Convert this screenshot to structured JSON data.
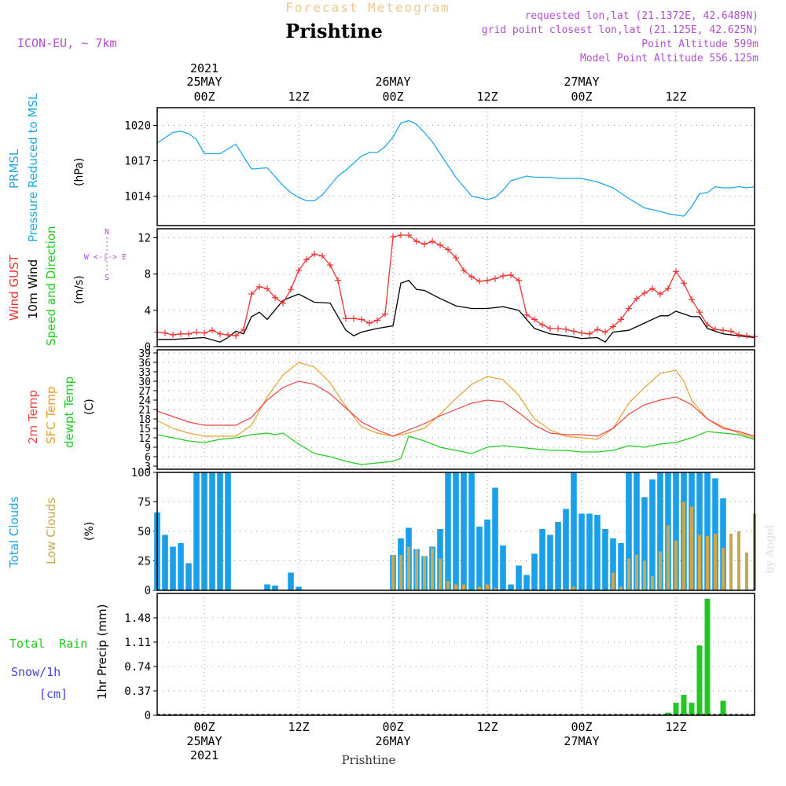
{
  "header": {
    "product": "Forecast Meteogram",
    "location": "Prishtine",
    "model": "ICON-EU, ~ 7km",
    "requested": "requested lon,lat (21.1372E, 42.6489N)",
    "gridpoint": "grid point closest lon,lat (21.125E, 42.625N)",
    "point_altitude": "Point Altitude 599m",
    "model_altitude": "Model Point Altitude 556.125m",
    "footer_location": "Prishtine",
    "credit": "by Angel"
  },
  "time_axis": {
    "top_year": "2021",
    "top_labels": [
      {
        "hour": 6,
        "line1": "25MAY",
        "line2": "00Z"
      },
      {
        "hour": 18,
        "line1": "",
        "line2": "12Z"
      },
      {
        "hour": 30,
        "line1": "26MAY",
        "line2": "00Z"
      },
      {
        "hour": 42,
        "line1": "",
        "line2": "12Z"
      },
      {
        "hour": 54,
        "line1": "27MAY",
        "line2": "00Z"
      },
      {
        "hour": 66,
        "line1": "",
        "line2": "12Z"
      }
    ],
    "bottom_labels": [
      {
        "hour": 6,
        "line1": "00Z",
        "line2": "25MAY",
        "line3": "2021"
      },
      {
        "hour": 18,
        "line1": "12Z",
        "line2": "",
        "line3": ""
      },
      {
        "hour": 30,
        "line1": "00Z",
        "line2": "26MAY",
        "line3": ""
      },
      {
        "hour": 42,
        "line1": "12Z",
        "line2": "",
        "line3": ""
      },
      {
        "hour": 54,
        "line1": "00Z",
        "line2": "27MAY",
        "line3": ""
      },
      {
        "hour": 66,
        "line1": "12Z",
        "line2": "",
        "line3": ""
      }
    ],
    "range_hours": [
      0,
      76
    ]
  },
  "colors": {
    "pressure": "#20a8e8",
    "gust": "#ee3333",
    "wind": "#000000",
    "temp2m": "#ee4444",
    "sfc": "#e8a030",
    "dewpt": "#22cc22",
    "total_cloud": "#1aa0e8",
    "low_cloud": "#c8a850",
    "rain": "#22c822",
    "snow": "#4444dd",
    "header_orange": "#f0c890",
    "header_violet": "#b050d0",
    "grid": "#999999"
  },
  "panels": {
    "pressure": {
      "label1": "PRMSL",
      "label2": "Pressure Reduced to MSL",
      "unit": "(hPa)",
      "ticks": [
        "1014",
        "1017",
        "1020"
      ]
    },
    "wind": {
      "label_gust": "Wind GUST",
      "label_wind": "10m Wind",
      "label_dir": "Speed and Direction",
      "unit": "(m/s)",
      "ticks": [
        "0",
        "4",
        "8",
        "12"
      ],
      "compass_n": "N",
      "compass_s": "S",
      "compass_we": "W <-|-> E"
    },
    "temp": {
      "label_2m": "2m Temp",
      "label_sfc": "SFC Temp",
      "label_dew": "dewpt Temp",
      "unit": "(C)",
      "ticks": [
        "3",
        "6",
        "9",
        "12",
        "15",
        "18",
        "21",
        "24",
        "27",
        "30",
        "33",
        "36",
        "39"
      ]
    },
    "cloud": {
      "label_total": "Total Clouds",
      "label_low": "Low Clouds",
      "unit": "(%)",
      "ticks": [
        "0",
        "25",
        "50",
        "75",
        "100"
      ]
    },
    "precip": {
      "label_rain": "Total  Rain",
      "label_snow": "Snow/1h",
      "label_cm": "[cm]",
      "label_axis": "1hr Precip (mm)",
      "ticks": [
        "0",
        "0.37",
        "0.74",
        "1.11",
        "1.48"
      ]
    }
  },
  "chart_data": [
    {
      "type": "line",
      "title": "PRMSL Pressure Reduced to MSL",
      "ylabel": "hPa",
      "x_unit": "hours from 24 May 18Z",
      "ylim": [
        1011.5,
        1021.5
      ],
      "series": [
        {
          "name": "PRMSL",
          "x": [
            0,
            2,
            3,
            4,
            5,
            6,
            8,
            10,
            12,
            14,
            16,
            17,
            18,
            19,
            20,
            21,
            22,
            23,
            24,
            26,
            27,
            28,
            29,
            30,
            31,
            32,
            33,
            34,
            35,
            36,
            37,
            38,
            40,
            42,
            43,
            44,
            45,
            46,
            47,
            48,
            49,
            50,
            51,
            52,
            53,
            54,
            56,
            58,
            60,
            62,
            64,
            65,
            66,
            67,
            68,
            69,
            70,
            71,
            72,
            73,
            74,
            75,
            76
          ],
          "y": [
            1018.5,
            1019.4,
            1019.5,
            1019.3,
            1018.8,
            1017.6,
            1017.6,
            1018.4,
            1016.3,
            1016.4,
            1014.9,
            1014.3,
            1013.9,
            1013.6,
            1013.6,
            1014.1,
            1014.9,
            1015.7,
            1016.2,
            1017.4,
            1017.7,
            1017.7,
            1018.2,
            1019.0,
            1020.2,
            1020.4,
            1020.1,
            1019.4,
            1018.6,
            1017.6,
            1016.6,
            1015.6,
            1014.0,
            1013.7,
            1013.9,
            1014.5,
            1015.3,
            1015.5,
            1015.7,
            1015.6,
            1015.6,
            1015.6,
            1015.5,
            1015.5,
            1015.5,
            1015.5,
            1015.2,
            1014.7,
            1013.8,
            1013.0,
            1012.7,
            1012.5,
            1012.4,
            1012.3,
            1013.1,
            1014.2,
            1014.3,
            1014.8,
            1014.7,
            1014.7,
            1014.8,
            1014.7,
            1014.8
          ]
        }
      ]
    },
    {
      "type": "line",
      "title": "Wind GUST / 10m Wind Speed",
      "ylabel": "m/s",
      "ylim": [
        0,
        13
      ],
      "series": [
        {
          "name": "Wind GUST",
          "x": [
            0,
            1,
            2,
            3,
            4,
            5,
            6,
            7,
            8,
            9,
            10,
            11,
            12,
            13,
            14,
            15,
            16,
            17,
            18,
            19,
            20,
            21,
            22,
            23,
            24,
            25,
            26,
            27,
            28,
            29,
            30,
            31,
            32,
            33,
            34,
            35,
            36,
            37,
            38,
            39,
            40,
            41,
            42,
            43,
            44,
            45,
            46,
            47,
            48,
            49,
            50,
            51,
            52,
            53,
            54,
            55,
            56,
            57,
            58,
            59,
            60,
            61,
            62,
            63,
            64,
            65,
            66,
            67,
            68,
            69,
            70,
            71,
            72,
            73,
            74,
            75,
            76
          ],
          "y": [
            1.6,
            1.5,
            1.3,
            1.4,
            1.4,
            1.6,
            1.5,
            1.8,
            1.4,
            1.3,
            1.2,
            1.9,
            5.8,
            6.6,
            6.4,
            5.4,
            4.8,
            6.3,
            8.4,
            9.6,
            10.2,
            10.0,
            9.0,
            7.3,
            3.1,
            3.1,
            3.0,
            2.6,
            2.9,
            3.6,
            12.1,
            12.3,
            12.3,
            11.6,
            11.3,
            11.6,
            11.2,
            10.7,
            9.8,
            8.4,
            7.7,
            7.2,
            7.3,
            7.5,
            7.8,
            7.9,
            7.3,
            3.5,
            3.0,
            2.4,
            2.0,
            2.0,
            1.9,
            1.7,
            1.5,
            1.4,
            1.9,
            1.6,
            2.2,
            3.0,
            4.2,
            5.3,
            5.9,
            6.4,
            5.8,
            6.4,
            8.3,
            7.0,
            5.2,
            3.8,
            2.4,
            1.9,
            1.8,
            1.7,
            1.3,
            1.2,
            1.1
          ]
        },
        {
          "name": "10m Wind",
          "x": [
            0,
            2,
            4,
            6,
            8,
            9,
            10,
            11,
            12,
            13,
            14,
            16,
            18,
            20,
            22,
            24,
            25,
            26,
            28,
            30,
            31,
            32,
            33,
            34,
            36,
            38,
            40,
            42,
            44,
            46,
            48,
            50,
            52,
            54,
            56,
            57,
            58,
            60,
            62,
            64,
            65,
            66,
            68,
            69,
            70,
            72,
            74,
            76
          ],
          "y": [
            0.8,
            0.8,
            0.9,
            1.0,
            0.5,
            1.0,
            1.7,
            1.4,
            3.3,
            3.8,
            3.0,
            5.1,
            5.8,
            4.9,
            4.8,
            1.8,
            1.2,
            1.6,
            2.0,
            2.3,
            7.0,
            7.3,
            6.3,
            6.2,
            5.3,
            4.5,
            4.2,
            4.2,
            4.4,
            4.0,
            2.0,
            1.4,
            1.2,
            0.9,
            1.0,
            0.5,
            1.6,
            1.8,
            2.6,
            3.4,
            3.4,
            3.9,
            3.3,
            3.3,
            2.0,
            1.4,
            1.2,
            1.0
          ]
        }
      ]
    },
    {
      "type": "line",
      "title": "2m Temp / SFC Temp / dewpt Temp",
      "ylabel": "C",
      "ylim": [
        2,
        40
      ],
      "series": [
        {
          "name": "2m Temp",
          "x": [
            0,
            4,
            6,
            8,
            10,
            12,
            14,
            16,
            18,
            20,
            22,
            24,
            26,
            28,
            30,
            32,
            34,
            36,
            38,
            40,
            42,
            44,
            46,
            48,
            50,
            52,
            54,
            56,
            58,
            60,
            62,
            64,
            66,
            68,
            70,
            72,
            74,
            76
          ],
          "y": [
            20.5,
            17.0,
            16.0,
            16.0,
            16.0,
            18.5,
            24.0,
            28.0,
            30.0,
            29.0,
            26.0,
            21.5,
            17.0,
            14.5,
            12.5,
            14.5,
            16.5,
            19.0,
            21.0,
            23.0,
            24.0,
            23.5,
            20.0,
            16.0,
            13.5,
            13.0,
            13.0,
            12.5,
            15.0,
            19.5,
            22.5,
            24.0,
            25.0,
            22.5,
            18.0,
            15.0,
            14.0,
            12.5
          ]
        },
        {
          "name": "SFC Temp",
          "x": [
            0,
            2,
            4,
            6,
            8,
            10,
            12,
            14,
            16,
            18,
            20,
            22,
            24,
            26,
            28,
            30,
            32,
            34,
            36,
            38,
            40,
            42,
            44,
            46,
            48,
            50,
            52,
            54,
            56,
            58,
            60,
            62,
            64,
            66,
            67,
            68,
            70,
            72,
            74,
            76
          ],
          "y": [
            17.5,
            15.0,
            13.5,
            12.5,
            12.5,
            12.5,
            16.0,
            25.0,
            32.0,
            36.0,
            34.5,
            29.5,
            22.0,
            15.5,
            13.5,
            12.5,
            13.5,
            15.0,
            19.5,
            24.5,
            29.0,
            31.5,
            30.5,
            25.5,
            18.0,
            14.5,
            12.5,
            12.0,
            11.5,
            15.0,
            23.0,
            28.0,
            32.5,
            33.5,
            30.0,
            24.0,
            18.0,
            15.5,
            13.5,
            12.0
          ]
        },
        {
          "name": "dewpt Temp",
          "x": [
            0,
            2,
            4,
            6,
            8,
            10,
            12,
            14,
            15,
            16,
            18,
            20,
            22,
            24,
            26,
            28,
            30,
            31,
            32,
            34,
            36,
            38,
            40,
            42,
            44,
            46,
            48,
            50,
            52,
            54,
            56,
            58,
            60,
            62,
            64,
            66,
            68,
            70,
            72,
            74,
            76
          ],
          "y": [
            13.0,
            12.0,
            11.0,
            10.5,
            11.5,
            12.0,
            13.0,
            13.5,
            13.0,
            13.5,
            10.0,
            7.0,
            6.0,
            4.5,
            3.5,
            4.0,
            4.5,
            5.5,
            12.5,
            11.0,
            9.0,
            8.0,
            7.0,
            9.0,
            9.5,
            9.0,
            8.5,
            8.0,
            8.0,
            7.5,
            7.5,
            8.0,
            9.5,
            9.0,
            10.0,
            10.5,
            12.0,
            14.0,
            13.5,
            13.0,
            11.5
          ]
        }
      ]
    },
    {
      "type": "bar",
      "title": "Total Clouds / Low Clouds",
      "ylabel": "%",
      "ylim": [
        0,
        100
      ],
      "series": [
        {
          "name": "Total Clouds",
          "x": [
            0,
            1,
            2,
            3,
            4,
            5,
            6,
            7,
            8,
            9,
            10,
            11,
            12,
            13,
            14,
            15,
            16,
            17,
            18,
            19,
            20,
            21,
            22,
            23,
            24,
            25,
            26,
            27,
            28,
            29,
            30,
            31,
            32,
            33,
            34,
            35,
            36,
            37,
            38,
            39,
            40,
            41,
            42,
            43,
            44,
            45,
            46,
            47,
            48,
            49,
            50,
            51,
            52,
            53,
            54,
            55,
            56,
            57,
            58,
            59,
            60,
            61,
            62,
            63,
            64,
            65,
            66,
            67,
            68,
            69,
            70,
            71,
            72,
            73,
            74,
            75,
            76
          ],
          "y": [
            66,
            47,
            37,
            40,
            23,
            100,
            100,
            100,
            100,
            100,
            0,
            0,
            0,
            0,
            5,
            4,
            0,
            15,
            3,
            0,
            0,
            0,
            0,
            0,
            0,
            0,
            0,
            0,
            0,
            0,
            30,
            44,
            53,
            35,
            29,
            37,
            52,
            100,
            100,
            100,
            100,
            54,
            60,
            87,
            38,
            5,
            21,
            13,
            31,
            52,
            47,
            58,
            69,
            100,
            65,
            65,
            64,
            52,
            44,
            40,
            100,
            100,
            79,
            94,
            100,
            100,
            100,
            100,
            100,
            100,
            100,
            95,
            78,
            0,
            0,
            0,
            0
          ]
        },
        {
          "name": "Low Clouds",
          "x": [
            30,
            31,
            32,
            33,
            34,
            35,
            36,
            37,
            38,
            39,
            41,
            42,
            43,
            46,
            52,
            53,
            58,
            59,
            60,
            61,
            62,
            63,
            64,
            65,
            66,
            67,
            68,
            69,
            70,
            71,
            72,
            73,
            74,
            75,
            76
          ],
          "y": [
            30,
            30,
            37,
            35,
            29,
            36,
            27,
            8,
            5,
            5,
            3,
            5,
            2,
            1,
            1,
            3,
            15,
            3,
            27,
            30,
            25,
            12,
            33,
            55,
            42,
            75,
            71,
            47,
            46,
            48,
            36,
            48,
            50,
            32,
            65
          ]
        }
      ]
    },
    {
      "type": "bar",
      "title": "1hr Precip (mm)",
      "ylabel": "mm",
      "ylim": [
        0,
        1.85
      ],
      "series": [
        {
          "name": "Total Rain",
          "x": [
            65,
            66,
            67,
            68,
            69,
            70,
            72
          ],
          "y": [
            0.04,
            0.19,
            0.31,
            0.19,
            1.06,
            1.77,
            0.22
          ]
        }
      ]
    }
  ]
}
